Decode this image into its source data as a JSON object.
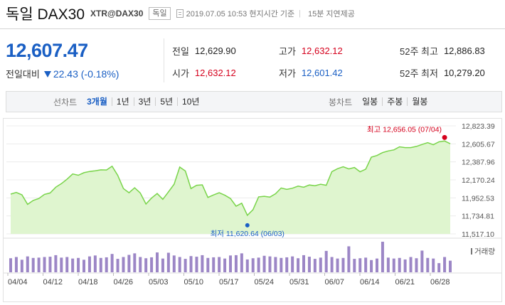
{
  "header": {
    "title": "독일 DAX30",
    "code": "XTR@DAX30",
    "badge": "독일",
    "datetime": "2019.07.05 10:53 현지시간 기준",
    "delay": "15분 지연제공"
  },
  "quote": {
    "price": "12,607.47",
    "change_label": "전일대비",
    "change_value": "22.43 (-0.18%)",
    "change_direction": "down"
  },
  "stats": [
    {
      "label": "전일",
      "value": "12,629.90",
      "color": "normal"
    },
    {
      "label": "고가",
      "value": "12,632.12",
      "color": "red"
    },
    {
      "label": "52주 최고",
      "value": "12,886.83",
      "color": "normal"
    },
    {
      "label": "시가",
      "value": "12,632.12",
      "color": "red"
    },
    {
      "label": "저가",
      "value": "12,601.42",
      "color": "blue"
    },
    {
      "label": "52주 최저",
      "value": "10,279.20",
      "color": "normal"
    }
  ],
  "tabs": {
    "line_label": "선차트",
    "line_tabs": [
      "3개월",
      "1년",
      "3년",
      "5년",
      "10년"
    ],
    "line_active": "3개월",
    "candle_label": "봉차트",
    "candle_tabs": [
      "일봉",
      "주봉",
      "월봉"
    ]
  },
  "colors": {
    "accent_blue": "#1a5fc4",
    "up_red": "#d5001c",
    "line_green": "#79d44a",
    "area_green": "#dff5cf",
    "volume_purple": "#9c86c6"
  },
  "chart_data": {
    "type": "area",
    "y_ticks": [
      "12,823.39",
      "12,605.67",
      "12,387.96",
      "12,170.24",
      "11,952.53",
      "11,734.81",
      "11,517.10"
    ],
    "ylim": [
      11517.1,
      12823.39
    ],
    "x_ticks": [
      "04/04",
      "04/12",
      "04/18",
      "04/26",
      "05/03",
      "05/10",
      "05/17",
      "05/24",
      "05/31",
      "06/07",
      "06/14",
      "06/21",
      "06/28"
    ],
    "values": [
      11998,
      12018,
      11990,
      11875,
      11922,
      11945,
      11995,
      12012,
      12082,
      12125,
      12178,
      12242,
      12226,
      12257,
      12272,
      12280,
      12291,
      12290,
      12335,
      12225,
      12065,
      12015,
      12075,
      12012,
      11878,
      11950,
      12005,
      11935,
      12025,
      12118,
      12325,
      12278,
      12065,
      12105,
      12110,
      11958,
      11988,
      12015,
      11985,
      11945,
      11852,
      11888,
      11742,
      11810,
      11965,
      11972,
      11962,
      12003,
      12072,
      12055,
      12070,
      12095,
      12082,
      12108,
      12100,
      12118,
      12105,
      12270,
      12305,
      12328,
      12303,
      12320,
      12268,
      12300,
      12445,
      12465,
      12500,
      12520,
      12533,
      12570,
      12560,
      12560,
      12575,
      12598,
      12620,
      12595,
      12630,
      12640,
      12607
    ],
    "high_label": "최고 12,656.05 (07/04)",
    "low_label": "최저 11,620.64 (06/03)",
    "high_index": 77,
    "low_index": 42,
    "volume_label": "거래량",
    "volume": [
      0.46,
      0.5,
      0.41,
      0.52,
      0.47,
      0.48,
      0.5,
      0.51,
      0.56,
      0.48,
      0.5,
      0.45,
      0.47,
      0.41,
      0.52,
      0.55,
      0.47,
      0.49,
      0.6,
      0.44,
      0.5,
      0.57,
      0.62,
      0.5,
      0.46,
      0.49,
      0.65,
      0.45,
      0.64,
      0.55,
      0.5,
      0.44,
      0.53,
      0.51,
      0.56,
      0.47,
      0.49,
      0.5,
      0.45,
      0.55,
      0.56,
      0.62,
      0.42,
      0.46,
      0.48,
      0.54,
      0.52,
      0.5,
      0.47,
      0.49,
      0.52,
      0.46,
      0.56,
      0.51,
      0.44,
      0.48,
      0.7,
      0.5,
      0.45,
      0.47,
      0.85,
      0.44,
      0.46,
      0.48,
      0.4,
      0.45,
      1.0,
      0.48,
      0.45,
      0.47,
      0.42,
      0.5,
      0.46,
      0.71,
      0.47,
      0.45,
      0.3,
      0.5,
      0.38
    ]
  }
}
